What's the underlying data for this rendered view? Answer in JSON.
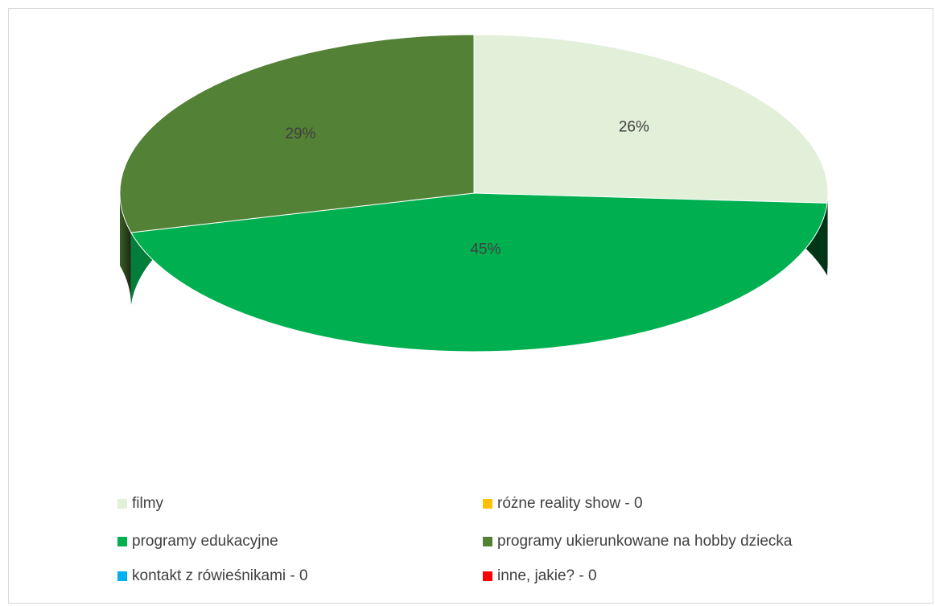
{
  "chart_data": {
    "type": "pie",
    "style": "3d",
    "title": "",
    "series": [
      {
        "label": "filmy",
        "value": 26,
        "data_label": "26%",
        "color": "#e2efd9"
      },
      {
        "label": "różne reality show - 0",
        "value": 0,
        "data_label": "",
        "color": "#ffc000"
      },
      {
        "label": "programy edukacyjne",
        "value": 45,
        "data_label": "45%",
        "color": "#00b050"
      },
      {
        "label": "programy ukierunkowane na hobby dziecka",
        "value": 29,
        "data_label": "29%",
        "color": "#538135"
      },
      {
        "label": "kontakt z rówieśnikami - 0",
        "value": 0,
        "data_label": "",
        "color": "#00b0f0"
      },
      {
        "label": "inne, jakie? - 0",
        "value": 0,
        "data_label": "",
        "color": "#ff0000"
      }
    ],
    "slice_order": [
      "filmy",
      "programy edukacyjne",
      "programy ukierunkowane na hobby dziecka"
    ],
    "legend_position": "bottom",
    "legend_columns": 2
  }
}
